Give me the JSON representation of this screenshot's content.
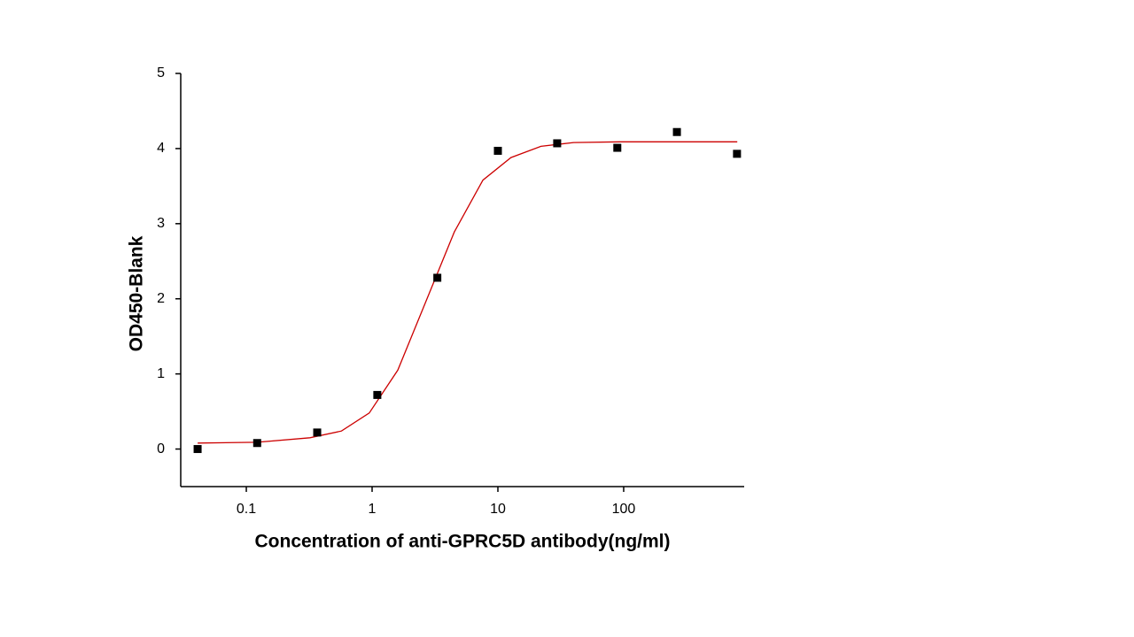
{
  "chart_data": {
    "type": "scatter",
    "x_label": "Concentration of anti-GPRC5D antibody(ng/ml)",
    "y_label": "OD450-Blank",
    "x_log": true,
    "xlim": [
      0.0301,
      908
    ],
    "xticks": [
      0.1,
      1,
      10,
      100
    ],
    "ylim": [
      -0.5,
      5
    ],
    "yticks": [
      0,
      1,
      2,
      3,
      4,
      5
    ],
    "series": [
      {
        "color": "#000000",
        "x": [
          0.041,
          0.122,
          0.366,
          1.1,
          3.3,
          10,
          29.6,
          89,
          265,
          796
        ],
        "values": [
          0,
          0.08,
          0.22,
          0.72,
          2.28,
          3.97,
          4.07,
          4.01,
          4.22,
          3.93
        ]
      },
      {
        "color": "#cc0000",
        "x": [
          0.041,
          0.122,
          0.32,
          0.57,
          0.95,
          1.6,
          2.7,
          4.5,
          7.6,
          12.7,
          22,
          40,
          94,
          800
        ],
        "values": [
          0.08,
          0.09,
          0.15,
          0.24,
          0.48,
          1.05,
          1.98,
          2.89,
          3.58,
          3.88,
          4.03,
          4.08,
          4.09,
          4.09
        ]
      }
    ]
  }
}
